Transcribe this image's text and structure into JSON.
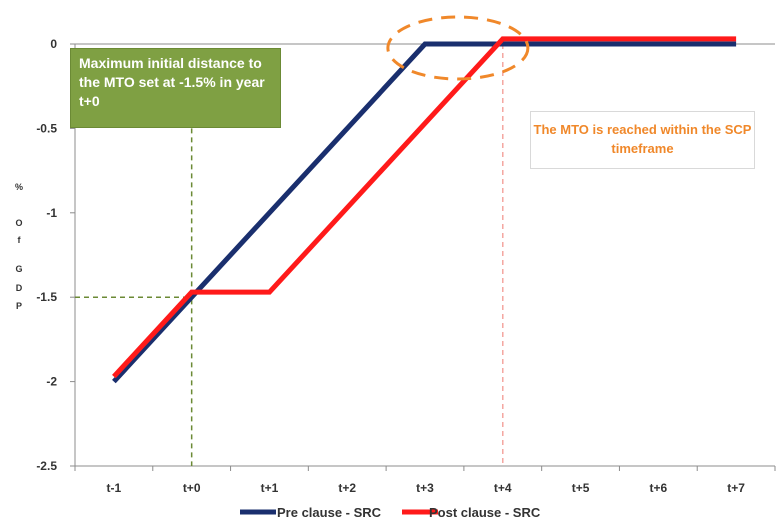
{
  "chart_data": {
    "type": "line",
    "title": "",
    "xlabel": "",
    "ylabel": "% Of GDP",
    "ylabel_chars": [
      "%",
      "O",
      "f",
      "G",
      "D",
      "P"
    ],
    "categories": [
      "t-1",
      "t+0",
      "t+1",
      "t+2",
      "t+3",
      "t+4",
      "t+5",
      "t+6",
      "t+7"
    ],
    "ylim": [
      -2.5,
      0
    ],
    "yticks": [
      0,
      -0.5,
      -1,
      -1.5,
      -2,
      -2.5
    ],
    "ytick_labels": [
      "0",
      "-0.5",
      "-1",
      "-1.5",
      "-2",
      "-2.5"
    ],
    "grid": false,
    "legend_position": "bottom",
    "series": [
      {
        "name": "Pre clause - SRC",
        "color": "#1a2f6e",
        "points": [
          [
            0,
            -2.0
          ],
          [
            1,
            -1.5
          ],
          [
            2,
            -1.0
          ],
          [
            3,
            -0.5
          ],
          [
            4,
            0.0
          ],
          [
            5,
            0.0
          ],
          [
            6,
            0.0
          ],
          [
            7,
            0.0
          ],
          [
            8,
            0.0
          ]
        ]
      },
      {
        "name": "Post clause - SRC",
        "color": "#ff1a1a",
        "points": [
          [
            0,
            -1.97
          ],
          [
            1,
            -1.47
          ],
          [
            2,
            -1.47
          ],
          [
            3,
            -0.97
          ],
          [
            4,
            -0.47
          ],
          [
            5,
            0.03
          ],
          [
            6,
            0.03
          ],
          [
            7,
            0.03
          ],
          [
            8,
            0.03
          ]
        ]
      }
    ],
    "reference_lines": [
      {
        "type": "vertical",
        "x": 1,
        "y_from": -2.5,
        "y_to": -0.5,
        "color": "#6b8a35"
      },
      {
        "type": "horizontal",
        "y": -1.5,
        "x_from": -0.5,
        "x_to": 1,
        "color": "#6b8a35"
      },
      {
        "type": "vertical",
        "x": 5,
        "y_from": -2.5,
        "y_to": 0.0,
        "color": "#f4a6a0"
      }
    ],
    "highlight_ellipse": {
      "x": 4.5,
      "y": 0.0,
      "color": "#f0882a"
    },
    "annotations": [
      {
        "text": "Maximum initial distance to the MTO set at -1.5% in year t+0",
        "color": "#ffffff",
        "background": "#7fa043"
      },
      {
        "text": "The MTO is reached within the SCP timeframe",
        "color": "#f0882a",
        "background": "#ffffff"
      }
    ]
  },
  "annotations": {
    "green_box_text": "Maximum initial distance to the MTO set at -1.5% in year t+0",
    "orange_box_text": "The MTO is reached within the SCP timeframe"
  }
}
